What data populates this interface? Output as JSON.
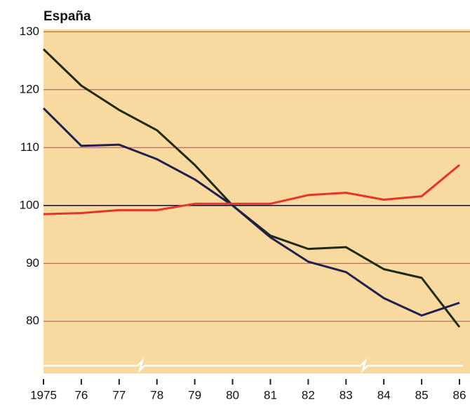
{
  "chart_data": {
    "type": "line",
    "title": "España",
    "categories": [
      "1975",
      "76",
      "77",
      "78",
      "79",
      "80",
      "81",
      "82",
      "83",
      "84",
      "85",
      "86"
    ],
    "series": [
      {
        "color": "#1f2a14",
        "values": [
          127,
          120.7,
          116.5,
          113,
          107,
          100,
          94.8,
          92.5,
          92.8,
          89,
          87.5,
          79
        ]
      },
      {
        "color": "#1e2050",
        "values": [
          116.8,
          110.3,
          110.5,
          108,
          104.5,
          100,
          94.5,
          90.3,
          88.5,
          84,
          81,
          83.2
        ]
      },
      {
        "color": "#e8322a",
        "values": [
          98.5,
          98.7,
          99.2,
          99.2,
          100.3,
          100.3,
          100.3,
          101.8,
          102.2,
          101,
          101.6,
          107
        ]
      }
    ],
    "ylim": [
      71,
      130.4
    ],
    "yticks": [
      80,
      90,
      100,
      110,
      120,
      130
    ],
    "grid": true,
    "reference_line": 100
  }
}
